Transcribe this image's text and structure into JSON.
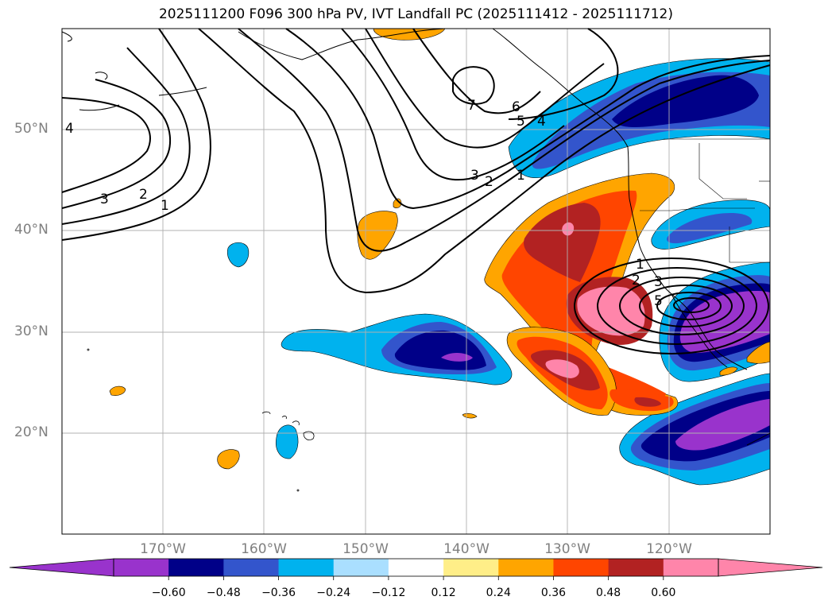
{
  "title": "2025111200 F096 300 hPa PV, IVT Landfall PC (2025111412 - 2025111712)",
  "lat_labels": [
    {
      "label": "50°N",
      "lat": 50
    },
    {
      "label": "40°N",
      "lat": 40
    },
    {
      "label": "30°N",
      "lat": 30
    },
    {
      "label": "20°N",
      "lat": 20
    }
  ],
  "lon_labels": [
    {
      "label": "170°W",
      "lon": -170
    },
    {
      "label": "160°W",
      "lon": -160
    },
    {
      "label": "150°W",
      "lon": -150
    },
    {
      "label": "140°W",
      "lon": -140
    },
    {
      "label": "130°W",
      "lon": -130
    },
    {
      "label": "120°W",
      "lon": -120
    }
  ],
  "contour_labels": [
    "1",
    "2",
    "3",
    "4",
    "5",
    "6",
    "7"
  ],
  "colorbar": {
    "ticks": [
      "−0.60",
      "−0.48",
      "−0.36",
      "−0.24",
      "−0.12",
      "0.12",
      "0.24",
      "0.36",
      "0.48",
      "0.60"
    ],
    "colors": [
      "#9933cc",
      "#000088",
      "#3355cc",
      "#00b2ee",
      "#aadfff",
      "#ffffff",
      "#ffee88",
      "#ffa500",
      "#ff4500",
      "#b22222",
      "#ff85aa"
    ],
    "under_color": "#9933cc",
    "over_color": "#ff85aa"
  },
  "palette": {
    "purple": "#9933cc",
    "navy": "#000088",
    "blue": "#3355cc",
    "cyan": "#00b2ee",
    "orange": "#ffa500",
    "red_orange": "#ff4500",
    "dark_red": "#b22222",
    "pink": "#ff85aa"
  }
}
